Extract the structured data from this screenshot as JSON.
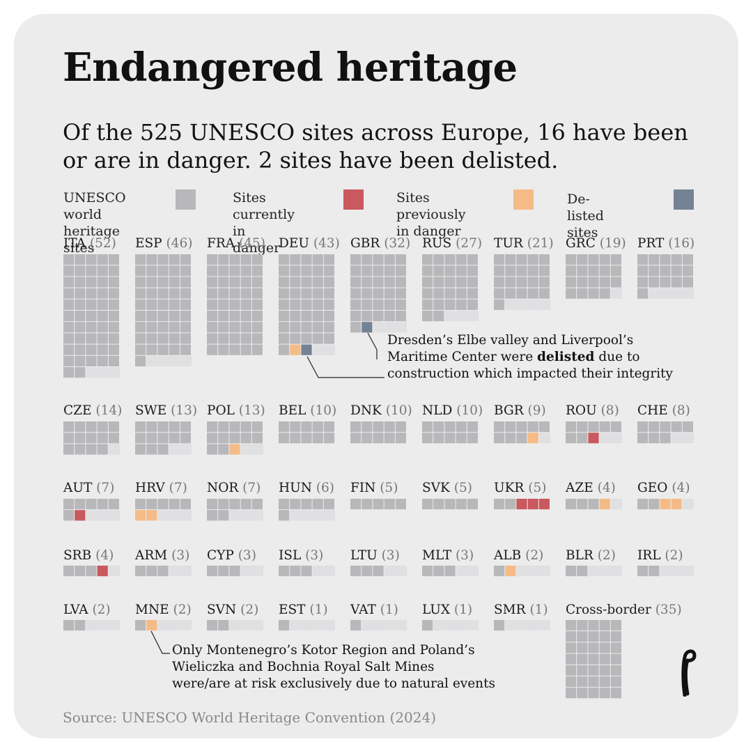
{
  "title": "Endangered heritage",
  "subtitle": "Of the 525 UNESCO sites across Europe, 16 have been or are in danger. 2 sites have been delisted.",
  "legend": [
    {
      "label": "UNESCO world\nheritage sites",
      "color": "#b8b8bb"
    },
    {
      "label": "Sites currently\nin danger",
      "color": "#c9595f"
    },
    {
      "label": "Sites previously\nin danger",
      "color": "#f5bb87"
    },
    {
      "label": "De-listed sites",
      "color": "#738294"
    }
  ],
  "annotations": {
    "delisted": [
      "Dresden’s Elbe valley and Liverpool’s",
      "Maritime Center were ",
      "delisted",
      " due to",
      "construction which impacted their integrity"
    ],
    "natural": [
      "Only Montenegro’s Kotor Region and Poland’s",
      "Wieliczka and Bochnia Royal Salt Mines",
      "were/are at risk  exclusively due to natural events"
    ]
  },
  "source": "Source: UNESCO World Heritage Convention (2024)",
  "logo": "e",
  "chart_data": {
    "type": "waffle",
    "title": "Endangered heritage",
    "unit": "UNESCO world heritage sites per country",
    "total_sites": 525,
    "in_danger_ever": 16,
    "delisted": 2,
    "series": [
      {
        "code": "ITA",
        "total": 52,
        "current": 0,
        "previous": 0,
        "delisted": 0
      },
      {
        "code": "ESP",
        "total": 46,
        "current": 0,
        "previous": 0,
        "delisted": 0
      },
      {
        "code": "FRA",
        "total": 45,
        "current": 0,
        "previous": 0,
        "delisted": 0
      },
      {
        "code": "DEU",
        "total": 43,
        "current": 0,
        "previous": 1,
        "delisted": 1
      },
      {
        "code": "GBR",
        "total": 32,
        "current": 0,
        "previous": 0,
        "delisted": 1
      },
      {
        "code": "RUS",
        "total": 27,
        "current": 0,
        "previous": 0,
        "delisted": 0
      },
      {
        "code": "TUR",
        "total": 21,
        "current": 0,
        "previous": 0,
        "delisted": 0
      },
      {
        "code": "GRC",
        "total": 19,
        "current": 0,
        "previous": 0,
        "delisted": 0
      },
      {
        "code": "PRT",
        "total": 16,
        "current": 0,
        "previous": 0,
        "delisted": 0
      },
      {
        "code": "CZE",
        "total": 14,
        "current": 0,
        "previous": 0,
        "delisted": 0
      },
      {
        "code": "SWE",
        "total": 13,
        "current": 0,
        "previous": 0,
        "delisted": 0
      },
      {
        "code": "POL",
        "total": 13,
        "current": 0,
        "previous": 1,
        "delisted": 0
      },
      {
        "code": "BEL",
        "total": 10,
        "current": 0,
        "previous": 0,
        "delisted": 0
      },
      {
        "code": "DNK",
        "total": 10,
        "current": 0,
        "previous": 0,
        "delisted": 0
      },
      {
        "code": "NLD",
        "total": 10,
        "current": 0,
        "previous": 0,
        "delisted": 0
      },
      {
        "code": "BGR",
        "total": 9,
        "current": 0,
        "previous": 1,
        "delisted": 0
      },
      {
        "code": "ROU",
        "total": 8,
        "current": 1,
        "previous": 0,
        "delisted": 0
      },
      {
        "code": "CHE",
        "total": 8,
        "current": 0,
        "previous": 0,
        "delisted": 0
      },
      {
        "code": "AUT",
        "total": 7,
        "current": 1,
        "previous": 0,
        "delisted": 0
      },
      {
        "code": "HRV",
        "total": 7,
        "current": 0,
        "previous": 2,
        "delisted": 0
      },
      {
        "code": "NOR",
        "total": 7,
        "current": 0,
        "previous": 0,
        "delisted": 0
      },
      {
        "code": "HUN",
        "total": 6,
        "current": 0,
        "previous": 0,
        "delisted": 0
      },
      {
        "code": "FIN",
        "total": 5,
        "current": 0,
        "previous": 0,
        "delisted": 0
      },
      {
        "code": "SVK",
        "total": 5,
        "current": 0,
        "previous": 0,
        "delisted": 0
      },
      {
        "code": "UKR",
        "total": 5,
        "current": 3,
        "previous": 0,
        "delisted": 0
      },
      {
        "code": "AZE",
        "total": 4,
        "current": 0,
        "previous": 1,
        "delisted": 0
      },
      {
        "code": "GEO",
        "total": 4,
        "current": 0,
        "previous": 2,
        "delisted": 0
      },
      {
        "code": "SRB",
        "total": 4,
        "current": 1,
        "previous": 0,
        "delisted": 0
      },
      {
        "code": "ARM",
        "total": 3,
        "current": 0,
        "previous": 0,
        "delisted": 0
      },
      {
        "code": "CYP",
        "total": 3,
        "current": 0,
        "previous": 0,
        "delisted": 0
      },
      {
        "code": "ISL",
        "total": 3,
        "current": 0,
        "previous": 0,
        "delisted": 0
      },
      {
        "code": "LTU",
        "total": 3,
        "current": 0,
        "previous": 0,
        "delisted": 0
      },
      {
        "code": "MLT",
        "total": 3,
        "current": 0,
        "previous": 0,
        "delisted": 0
      },
      {
        "code": "ALB",
        "total": 2,
        "current": 0,
        "previous": 1,
        "delisted": 0
      },
      {
        "code": "BLR",
        "total": 2,
        "current": 0,
        "previous": 0,
        "delisted": 0
      },
      {
        "code": "IRL",
        "total": 2,
        "current": 0,
        "previous": 0,
        "delisted": 0
      },
      {
        "code": "LVA",
        "total": 2,
        "current": 0,
        "previous": 0,
        "delisted": 0
      },
      {
        "code": "MNE",
        "total": 2,
        "current": 0,
        "previous": 1,
        "delisted": 0
      },
      {
        "code": "SVN",
        "total": 2,
        "current": 0,
        "previous": 0,
        "delisted": 0
      },
      {
        "code": "EST",
        "total": 1,
        "current": 0,
        "previous": 0,
        "delisted": 0
      },
      {
        "code": "VAT",
        "total": 1,
        "current": 0,
        "previous": 0,
        "delisted": 0
      },
      {
        "code": "LUX",
        "total": 1,
        "current": 0,
        "previous": 0,
        "delisted": 0
      },
      {
        "code": "SMR",
        "total": 1,
        "current": 0,
        "previous": 0,
        "delisted": 0
      },
      {
        "code": "Cross-border",
        "total": 35,
        "current": 0,
        "previous": 0,
        "delisted": 0
      }
    ]
  }
}
